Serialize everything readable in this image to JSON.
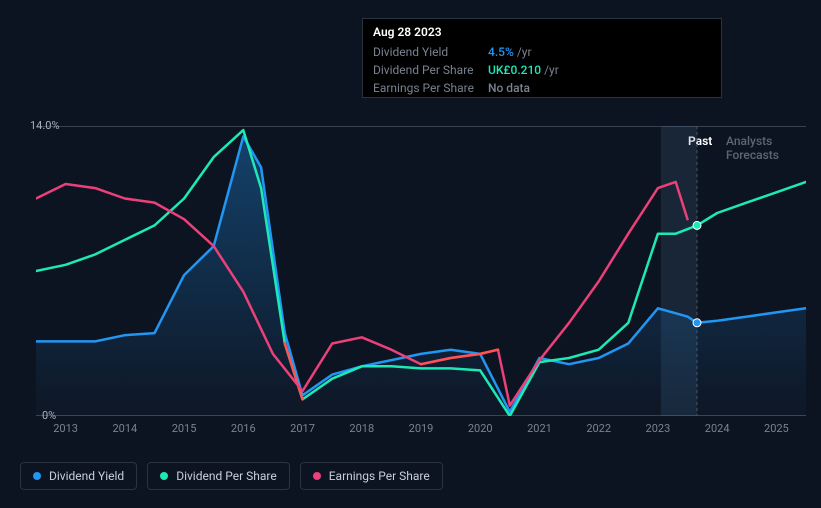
{
  "tooltip": {
    "title": "Aug 28 2023",
    "rows": [
      {
        "label": "Dividend Yield",
        "value": "4.5%",
        "suffix": "/yr",
        "color": "#2196f3"
      },
      {
        "label": "Dividend Per Share",
        "value": "UK£0.210",
        "suffix": "/yr",
        "color": "#1de9b6"
      },
      {
        "label": "Earnings Per Share",
        "value": "No data",
        "suffix": "",
        "color": "#7a8290"
      }
    ]
  },
  "chart": {
    "type": "line",
    "background": "#0d1421",
    "grid_color": "#1a2332",
    "ylim": [
      0,
      14
    ],
    "ylabels": [
      {
        "text": "14.0%",
        "pct": 0
      },
      {
        "text": "0%",
        "pct": 100
      }
    ],
    "xticks": [
      "2013",
      "2014",
      "2015",
      "2016",
      "2017",
      "2018",
      "2019",
      "2020",
      "2021",
      "2022",
      "2023",
      "2024",
      "2025"
    ],
    "x_start": 2012.5,
    "x_end": 2025.5,
    "past_marker_x": 2023.66,
    "past_label": "Past",
    "forecast_label": "Analysts Forecasts",
    "current_x_band": {
      "start": 2023.05,
      "end": 2023.66
    },
    "series": [
      {
        "name": "Dividend Yield",
        "color": "#2196f3",
        "fill": true,
        "fill_gradient": [
          "rgba(33,150,243,0.35)",
          "rgba(33,150,243,0.02)"
        ],
        "width": 2.5,
        "points": [
          [
            2012.5,
            3.6
          ],
          [
            2013,
            3.6
          ],
          [
            2013.5,
            3.6
          ],
          [
            2014,
            3.9
          ],
          [
            2014.5,
            4.0
          ],
          [
            2015,
            6.8
          ],
          [
            2015.5,
            8.2
          ],
          [
            2016,
            13.5
          ],
          [
            2016.3,
            12.0
          ],
          [
            2016.7,
            4.0
          ],
          [
            2017,
            1.0
          ],
          [
            2017.5,
            2.0
          ],
          [
            2018,
            2.4
          ],
          [
            2018.5,
            2.7
          ],
          [
            2019,
            3.0
          ],
          [
            2019.5,
            3.2
          ],
          [
            2020,
            3.0
          ],
          [
            2020.5,
            0.2
          ],
          [
            2021,
            2.8
          ],
          [
            2021.5,
            2.5
          ],
          [
            2022,
            2.8
          ],
          [
            2022.5,
            3.5
          ],
          [
            2023,
            5.2
          ],
          [
            2023.5,
            4.8
          ],
          [
            2023.66,
            4.5
          ],
          [
            2024,
            4.6
          ],
          [
            2024.5,
            4.8
          ],
          [
            2025,
            5.0
          ],
          [
            2025.5,
            5.2
          ]
        ],
        "marker_at": 2023.66
      },
      {
        "name": "Dividend Per Share",
        "color": "#1de9b6",
        "fill": false,
        "width": 2.5,
        "points": [
          [
            2012.5,
            7.0
          ],
          [
            2013,
            7.3
          ],
          [
            2013.5,
            7.8
          ],
          [
            2014,
            8.5
          ],
          [
            2014.5,
            9.2
          ],
          [
            2015,
            10.5
          ],
          [
            2015.5,
            12.5
          ],
          [
            2016,
            13.8
          ],
          [
            2016.3,
            11.0
          ],
          [
            2016.7,
            3.5
          ],
          [
            2017,
            0.8
          ],
          [
            2017.5,
            1.8
          ],
          [
            2018,
            2.4
          ],
          [
            2018.5,
            2.4
          ],
          [
            2019,
            2.3
          ],
          [
            2019.5,
            2.3
          ],
          [
            2020,
            2.2
          ],
          [
            2020.5,
            0.0
          ],
          [
            2021,
            2.6
          ],
          [
            2021.5,
            2.8
          ],
          [
            2022,
            3.2
          ],
          [
            2022.5,
            4.5
          ],
          [
            2023,
            8.8
          ],
          [
            2023.3,
            8.8
          ],
          [
            2023.66,
            9.2
          ],
          [
            2024,
            9.8
          ],
          [
            2024.5,
            10.3
          ],
          [
            2025,
            10.8
          ],
          [
            2025.5,
            11.3
          ]
        ],
        "marker_at": 2023.66,
        "negative_segment": {
          "start": 2016.5,
          "end": 2017.2,
          "color": "#ff5252"
        }
      },
      {
        "name": "Earnings Per Share",
        "color": "#ec407a",
        "fill": false,
        "width": 2.5,
        "points": [
          [
            2012.5,
            10.5
          ],
          [
            2013,
            11.2
          ],
          [
            2013.5,
            11.0
          ],
          [
            2014,
            10.5
          ],
          [
            2014.5,
            10.3
          ],
          [
            2015,
            9.5
          ],
          [
            2015.5,
            8.2
          ],
          [
            2016,
            6.0
          ],
          [
            2016.5,
            3.0
          ],
          [
            2017,
            1.2
          ],
          [
            2017.5,
            3.5
          ],
          [
            2018,
            3.8
          ],
          [
            2018.5,
            3.2
          ],
          [
            2019,
            2.5
          ],
          [
            2019.5,
            2.8
          ],
          [
            2020,
            3.0
          ],
          [
            2020.3,
            3.2
          ],
          [
            2020.5,
            0.5
          ],
          [
            2021,
            2.7
          ],
          [
            2021.5,
            4.5
          ],
          [
            2022,
            6.5
          ],
          [
            2022.5,
            8.8
          ],
          [
            2023,
            11.0
          ],
          [
            2023.3,
            11.3
          ],
          [
            2023.5,
            9.5
          ]
        ],
        "negative_segment": {
          "start": 2018.7,
          "end": 2020.3,
          "color": "#ff5252"
        }
      }
    ]
  },
  "legend": [
    {
      "label": "Dividend Yield",
      "color": "#2196f3"
    },
    {
      "label": "Dividend Per Share",
      "color": "#1de9b6"
    },
    {
      "label": "Earnings Per Share",
      "color": "#ec407a"
    }
  ]
}
